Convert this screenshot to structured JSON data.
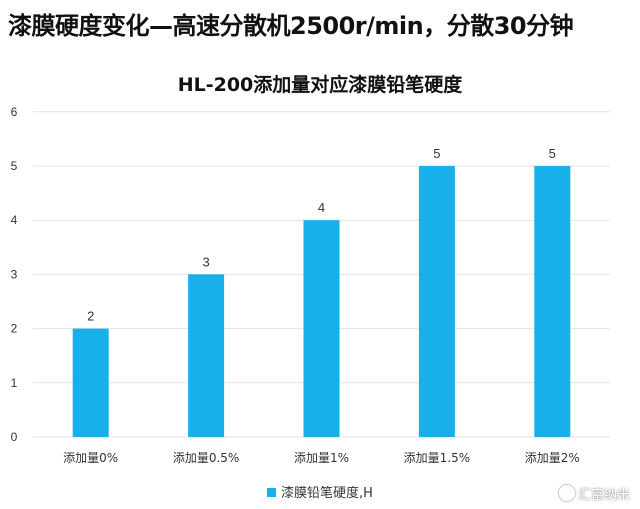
{
  "header": {
    "title": "漆膜硬度变化—高速分散机2500r/min，分散30分钟"
  },
  "watermark": {
    "text": "汇富纳米"
  },
  "colors": {
    "bar": "#18b0ea",
    "grid": "#e2e2e2"
  },
  "chart_data": {
    "type": "bar",
    "title": "HL-200添加量对应漆膜铅笔硬度",
    "categories": [
      "添加量0%",
      "添加量0.5%",
      "添加量1%",
      "添加量1.5%",
      "添加量2%"
    ],
    "series": [
      {
        "name": "漆膜铅笔硬度,H",
        "values": [
          2,
          3,
          4,
          5,
          5
        ]
      }
    ],
    "ylim": [
      0,
      6
    ],
    "yticks": [
      "0",
      "1",
      "2",
      "3",
      "4",
      "5",
      "6"
    ],
    "grid": true,
    "legend_position": "bottom"
  }
}
